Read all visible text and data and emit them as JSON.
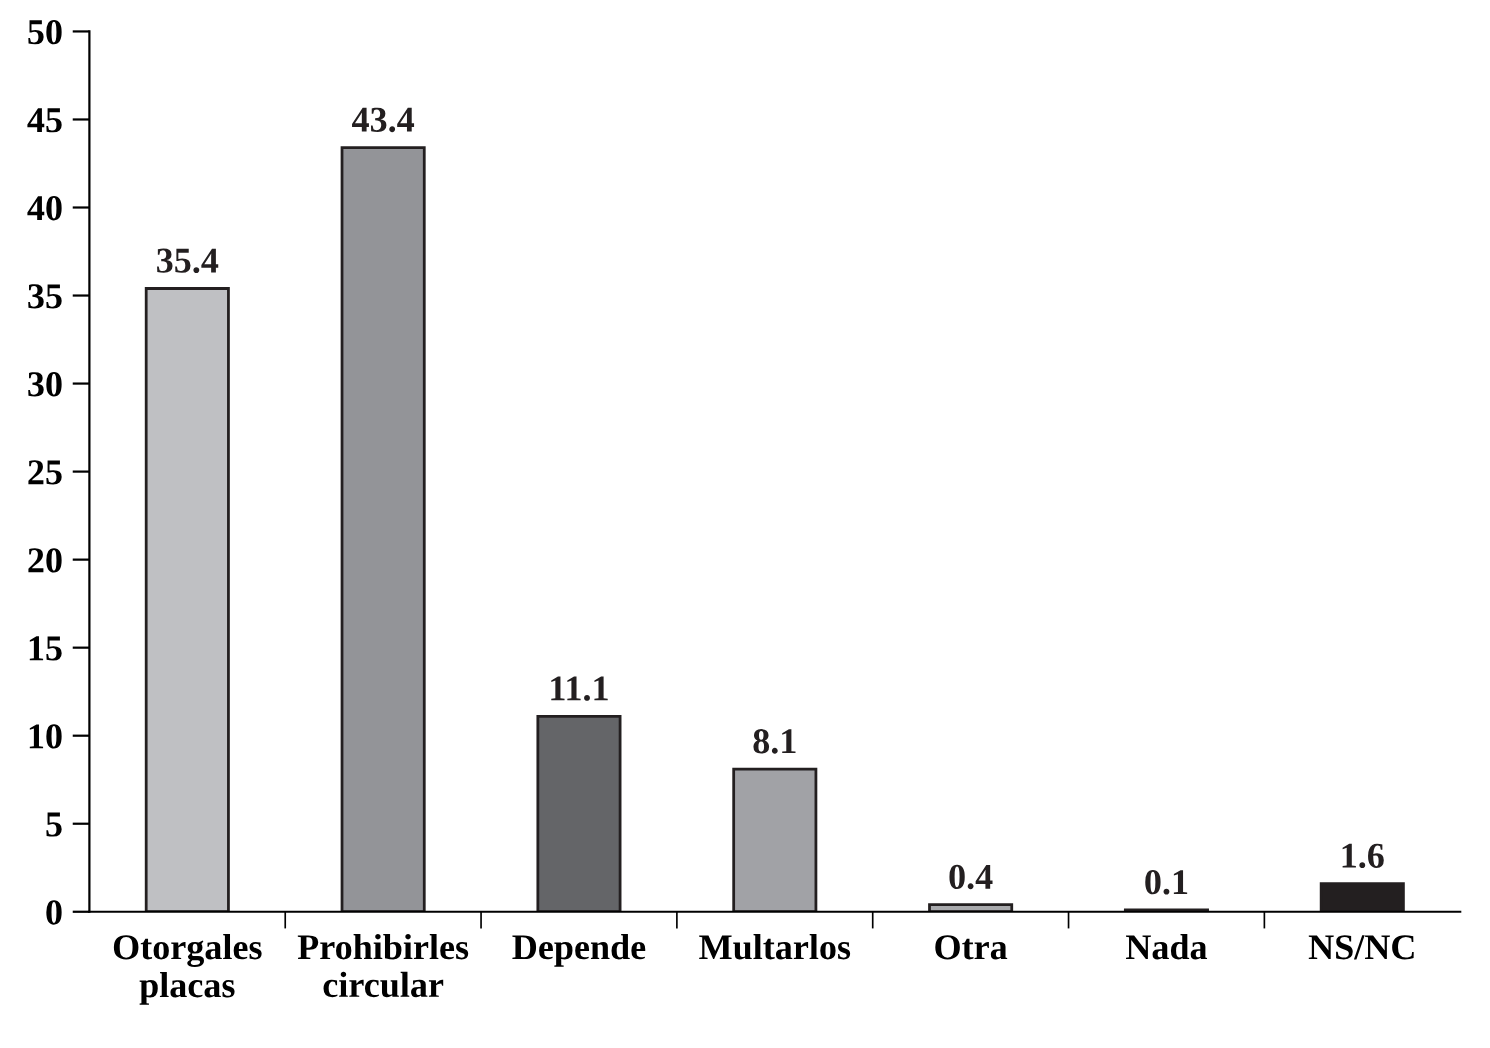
{
  "chart_data": {
    "type": "bar",
    "categories": [
      "Otorgales\nplacas",
      "Prohibirles\ncircular",
      "Depende",
      "Multarlos",
      "Otra",
      "Nada",
      "NS/NC"
    ],
    "values": [
      35.4,
      43.4,
      11.1,
      8.1,
      0.4,
      0.1,
      1.6
    ],
    "colors": [
      "#bfc0c3",
      "#939498",
      "#646568",
      "#a1a2a6",
      "#a8a9ac",
      "#8e8f92",
      "#231f20"
    ],
    "ylim": [
      0,
      50
    ],
    "yticks": [
      0,
      5,
      10,
      15,
      20,
      25,
      30,
      35,
      40,
      45,
      50
    ],
    "data_labels": true,
    "grid": false
  }
}
